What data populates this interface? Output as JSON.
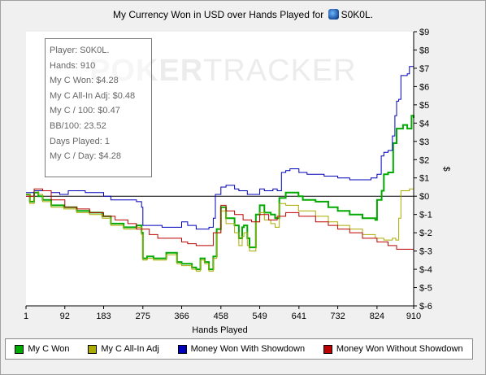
{
  "title_text": "My Currency Won in USD over Hands Played for",
  "player": "S0K0L.",
  "watermark": {
    "bold": "POKER",
    "thin": "TRACKER"
  },
  "stats": [
    "Player: S0K0L.",
    "Hands: 910",
    "My C Won: $4.28",
    "My C All-In Adj: $0.48",
    "My C / 100: $0.47",
    "BB/100: 23.52",
    "Days Played: 1",
    "My C / Day: $4.28"
  ],
  "legend": [
    {
      "label": "My C Won",
      "color": "#00aa00"
    },
    {
      "label": "My C All-In Adj",
      "color": "#aaaa00"
    },
    {
      "label": "Money Won With Showdown",
      "color": "#0000bb"
    },
    {
      "label": "Money Won Without Showdown",
      "color": "#bb0000"
    }
  ],
  "chart_data": {
    "type": "line",
    "title": "My Currency Won in USD over Hands Played for S0K0L.",
    "xlabel": "Hands Played",
    "ylabel": "$",
    "xlim": [
      1,
      910
    ],
    "ylim": [
      -6,
      9
    ],
    "x_ticks": [
      1,
      92,
      183,
      275,
      366,
      458,
      549,
      641,
      732,
      824,
      910
    ],
    "y_ticks": [
      9,
      8,
      7,
      6,
      5,
      4,
      3,
      2,
      1,
      0,
      -1,
      -2,
      -3,
      -4,
      -5,
      -6
    ],
    "y_tick_labels": [
      "$9",
      "$8",
      "$7",
      "$6",
      "$5",
      "$4",
      "$3",
      "$2",
      "$1",
      "$0",
      "$-1",
      "$-2",
      "$-3",
      "$-4",
      "$-5",
      "$-6"
    ],
    "grid": false,
    "zero_line": true,
    "series": [
      {
        "name": "My C Won",
        "color": "#00aa00",
        "points": [
          [
            1,
            0.1
          ],
          [
            10,
            -0.3
          ],
          [
            20,
            0.2
          ],
          [
            30,
            0.0
          ],
          [
            40,
            -0.2
          ],
          [
            60,
            -0.5
          ],
          [
            90,
            -0.6
          ],
          [
            120,
            -0.8
          ],
          [
            150,
            -0.9
          ],
          [
            180,
            -1.1
          ],
          [
            200,
            -1.5
          ],
          [
            230,
            -1.7
          ],
          [
            260,
            -1.6
          ],
          [
            272,
            -2.0
          ],
          [
            275,
            -3.4
          ],
          [
            285,
            -3.3
          ],
          [
            300,
            -3.4
          ],
          [
            330,
            -3.1
          ],
          [
            355,
            -3.6
          ],
          [
            366,
            -3.7
          ],
          [
            380,
            -3.7
          ],
          [
            390,
            -3.9
          ],
          [
            400,
            -4.0
          ],
          [
            410,
            -3.4
          ],
          [
            420,
            -3.6
          ],
          [
            430,
            -4.0
          ],
          [
            440,
            -3.3
          ],
          [
            448,
            -1.8
          ],
          [
            458,
            -0.6
          ],
          [
            470,
            -1.2
          ],
          [
            490,
            -1.6
          ],
          [
            500,
            -2.3
          ],
          [
            508,
            -1.7
          ],
          [
            512,
            -1.6
          ],
          [
            520,
            -2.3
          ],
          [
            525,
            -2.8
          ],
          [
            540,
            -1.0
          ],
          [
            549,
            -0.5
          ],
          [
            560,
            -0.9
          ],
          [
            575,
            -1.0
          ],
          [
            585,
            -1.2
          ],
          [
            595,
            -0.1
          ],
          [
            610,
            0.2
          ],
          [
            640,
            0.0
          ],
          [
            650,
            -0.2
          ],
          [
            680,
            -0.3
          ],
          [
            710,
            -0.6
          ],
          [
            732,
            -0.8
          ],
          [
            760,
            -1.0
          ],
          [
            790,
            -1.2
          ],
          [
            820,
            -1.3
          ],
          [
            824,
            -0.2
          ],
          [
            835,
            0.3
          ],
          [
            840,
            1.2
          ],
          [
            850,
            1.3
          ],
          [
            862,
            2.9
          ],
          [
            870,
            3.7
          ],
          [
            885,
            3.9
          ],
          [
            895,
            3.7
          ],
          [
            905,
            4.4
          ],
          [
            910,
            4.28
          ]
        ]
      },
      {
        "name": "My C All-In Adj",
        "color": "#aaaa00",
        "points": [
          [
            1,
            0.1
          ],
          [
            10,
            -0.4
          ],
          [
            20,
            0.3
          ],
          [
            30,
            0.1
          ],
          [
            40,
            -0.3
          ],
          [
            60,
            -0.6
          ],
          [
            90,
            -0.7
          ],
          [
            120,
            -0.9
          ],
          [
            150,
            -1.0
          ],
          [
            180,
            -1.2
          ],
          [
            200,
            -1.6
          ],
          [
            230,
            -1.8
          ],
          [
            260,
            -1.7
          ],
          [
            272,
            -2.1
          ],
          [
            275,
            -3.5
          ],
          [
            285,
            -3.4
          ],
          [
            300,
            -3.5
          ],
          [
            330,
            -3.2
          ],
          [
            355,
            -3.7
          ],
          [
            366,
            -3.8
          ],
          [
            380,
            -3.8
          ],
          [
            390,
            -4.0
          ],
          [
            400,
            -4.1
          ],
          [
            410,
            -3.5
          ],
          [
            420,
            -3.7
          ],
          [
            430,
            -4.1
          ],
          [
            440,
            -3.4
          ],
          [
            448,
            -2.0
          ],
          [
            458,
            -0.8
          ],
          [
            470,
            -1.5
          ],
          [
            490,
            -2.0
          ],
          [
            500,
            -2.7
          ],
          [
            508,
            -2.2
          ],
          [
            512,
            -2.0
          ],
          [
            520,
            -2.7
          ],
          [
            525,
            -3.0
          ],
          [
            540,
            -1.4
          ],
          [
            549,
            -0.9
          ],
          [
            560,
            -1.3
          ],
          [
            575,
            -1.5
          ],
          [
            585,
            -1.7
          ],
          [
            595,
            -0.4
          ],
          [
            610,
            -0.5
          ],
          [
            640,
            -0.8
          ],
          [
            680,
            -1.1
          ],
          [
            710,
            -1.4
          ],
          [
            732,
            -1.6
          ],
          [
            760,
            -1.8
          ],
          [
            790,
            -2.1
          ],
          [
            820,
            -2.3
          ],
          [
            840,
            -2.4
          ],
          [
            860,
            -2.3
          ],
          [
            868,
            -2.4
          ],
          [
            875,
            -1.2
          ],
          [
            880,
            0.3
          ],
          [
            890,
            0.3
          ],
          [
            900,
            0.4
          ],
          [
            910,
            0.48
          ]
        ]
      },
      {
        "name": "Money Won With Showdown",
        "color": "#0000bb",
        "points": [
          [
            1,
            0.2
          ],
          [
            20,
            0.3
          ],
          [
            60,
            0.2
          ],
          [
            80,
            0.1
          ],
          [
            90,
            0.1
          ],
          [
            100,
            0.3
          ],
          [
            140,
            0.2
          ],
          [
            183,
            0.0
          ],
          [
            200,
            -0.2
          ],
          [
            260,
            -0.3
          ],
          [
            272,
            -0.6
          ],
          [
            275,
            -1.6
          ],
          [
            300,
            -1.6
          ],
          [
            320,
            -1.7
          ],
          [
            350,
            -1.7
          ],
          [
            366,
            -1.4
          ],
          [
            380,
            -1.6
          ],
          [
            400,
            -1.8
          ],
          [
            430,
            -1.7
          ],
          [
            440,
            -1.2
          ],
          [
            445,
            0.1
          ],
          [
            458,
            0.5
          ],
          [
            470,
            0.6
          ],
          [
            490,
            0.4
          ],
          [
            500,
            0.3
          ],
          [
            510,
            0.3
          ],
          [
            520,
            0.1
          ],
          [
            549,
            0.4
          ],
          [
            560,
            0.3
          ],
          [
            580,
            0.4
          ],
          [
            590,
            0.3
          ],
          [
            600,
            1.3
          ],
          [
            610,
            1.4
          ],
          [
            620,
            1.5
          ],
          [
            641,
            1.3
          ],
          [
            660,
            1.2
          ],
          [
            700,
            1.1
          ],
          [
            732,
            1.0
          ],
          [
            760,
            0.9
          ],
          [
            800,
            0.9
          ],
          [
            810,
            1.0
          ],
          [
            824,
            1.2
          ],
          [
            834,
            2.2
          ],
          [
            840,
            2.4
          ],
          [
            850,
            2.5
          ],
          [
            860,
            3.3
          ],
          [
            866,
            4.4
          ],
          [
            870,
            5.2
          ],
          [
            875,
            5.3
          ],
          [
            880,
            6.6
          ],
          [
            895,
            6.7
          ],
          [
            900,
            7.1
          ],
          [
            910,
            7.2
          ]
        ]
      },
      {
        "name": "Money Won Without Showdown",
        "color": "#bb0000",
        "points": [
          [
            1,
            0.0
          ],
          [
            20,
            0.4
          ],
          [
            40,
            0.3
          ],
          [
            60,
            -0.2
          ],
          [
            92,
            -0.6
          ],
          [
            120,
            -0.7
          ],
          [
            150,
            -0.9
          ],
          [
            183,
            -1.1
          ],
          [
            210,
            -1.3
          ],
          [
            240,
            -1.5
          ],
          [
            260,
            -1.8
          ],
          [
            275,
            -1.8
          ],
          [
            290,
            -2.1
          ],
          [
            310,
            -2.3
          ],
          [
            340,
            -2.3
          ],
          [
            366,
            -2.5
          ],
          [
            380,
            -2.6
          ],
          [
            400,
            -2.7
          ],
          [
            420,
            -2.7
          ],
          [
            440,
            -2.0
          ],
          [
            458,
            -0.5
          ],
          [
            470,
            -0.8
          ],
          [
            490,
            -1.0
          ],
          [
            510,
            -1.3
          ],
          [
            530,
            -1.4
          ],
          [
            549,
            -1.0
          ],
          [
            570,
            -1.3
          ],
          [
            590,
            -1.1
          ],
          [
            610,
            -0.9
          ],
          [
            641,
            -1.1
          ],
          [
            680,
            -1.4
          ],
          [
            710,
            -1.6
          ],
          [
            732,
            -1.8
          ],
          [
            760,
            -2.0
          ],
          [
            790,
            -2.3
          ],
          [
            824,
            -2.5
          ],
          [
            850,
            -2.7
          ],
          [
            870,
            -2.9
          ],
          [
            890,
            -2.9
          ],
          [
            910,
            -3.0
          ]
        ]
      }
    ]
  }
}
